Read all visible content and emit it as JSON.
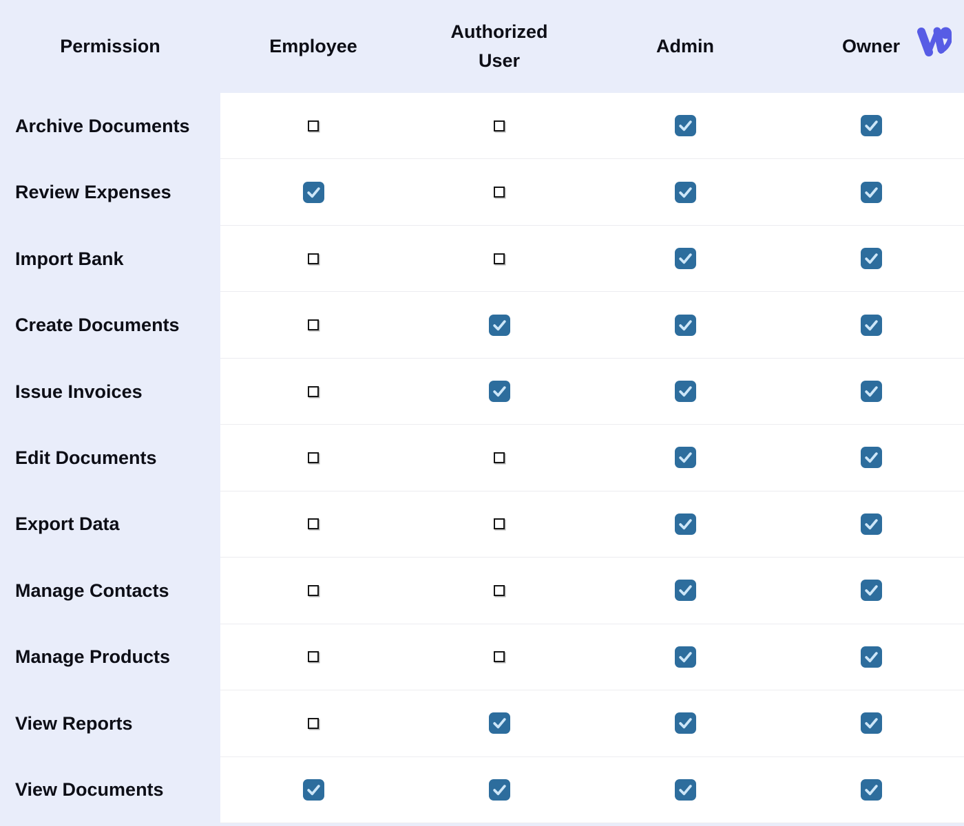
{
  "header": {
    "columns": [
      {
        "label": "Permission"
      },
      {
        "label": "Employee"
      },
      {
        "label": "Authorized User"
      },
      {
        "label": "Admin"
      },
      {
        "label": "Owner"
      }
    ]
  },
  "logo": {
    "icon": "w-comma-logo",
    "color": "#575CE5"
  },
  "colors": {
    "page_background": "#E9EDFA",
    "cell_background": "#FFFFFF",
    "row_separator": "#ECECF0",
    "text": "#0D0E16",
    "checkbox_checked_fill": "#2D6D9D",
    "checkbox_checkmark": "#CDE6F8",
    "checkbox_unchecked_border": "#161616"
  },
  "table": {
    "role_keys": [
      "employee",
      "authorized_user",
      "admin",
      "owner"
    ],
    "rows": [
      {
        "permission": "Archive Documents",
        "employee": false,
        "authorized_user": false,
        "admin": true,
        "owner": true
      },
      {
        "permission": "Review Expenses",
        "employee": true,
        "authorized_user": false,
        "admin": true,
        "owner": true
      },
      {
        "permission": "Import Bank",
        "employee": false,
        "authorized_user": false,
        "admin": true,
        "owner": true
      },
      {
        "permission": "Create Documents",
        "employee": false,
        "authorized_user": true,
        "admin": true,
        "owner": true
      },
      {
        "permission": "Issue Invoices",
        "employee": false,
        "authorized_user": true,
        "admin": true,
        "owner": true
      },
      {
        "permission": "Edit Documents",
        "employee": false,
        "authorized_user": false,
        "admin": true,
        "owner": true
      },
      {
        "permission": "Export Data",
        "employee": false,
        "authorized_user": false,
        "admin": true,
        "owner": true
      },
      {
        "permission": "Manage Contacts",
        "employee": false,
        "authorized_user": false,
        "admin": true,
        "owner": true
      },
      {
        "permission": "Manage Products",
        "employee": false,
        "authorized_user": false,
        "admin": true,
        "owner": true
      },
      {
        "permission": "View Reports",
        "employee": false,
        "authorized_user": true,
        "admin": true,
        "owner": true
      },
      {
        "permission": "View Documents",
        "employee": true,
        "authorized_user": true,
        "admin": true,
        "owner": true
      }
    ]
  }
}
